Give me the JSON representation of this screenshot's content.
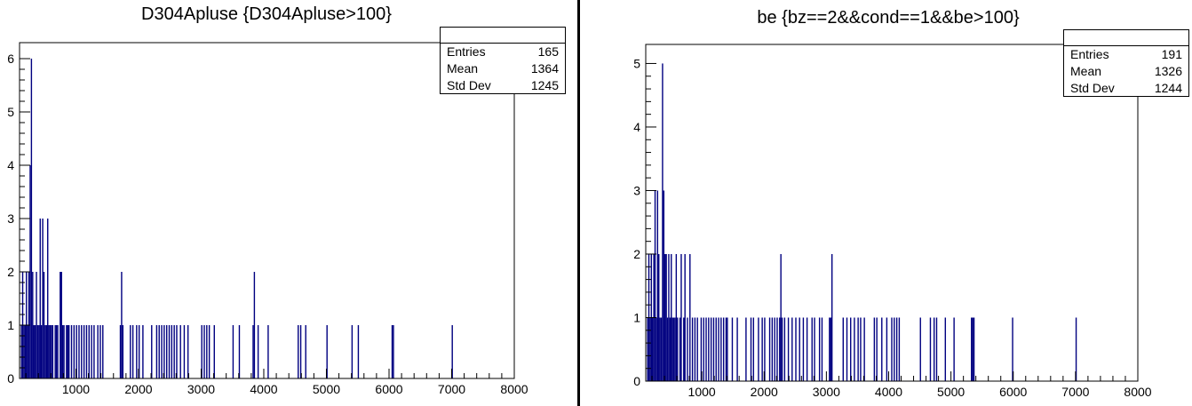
{
  "chart_data": [
    {
      "type": "bar",
      "title": "D304Apluse {D304Apluse>100}",
      "xlabel": "",
      "ylabel": "",
      "xlim": [
        100,
        8000
      ],
      "ylim": [
        0,
        6.3
      ],
      "xticks": [
        "1000",
        "2000",
        "3000",
        "4000",
        "5000",
        "6000",
        "7000",
        "8000"
      ],
      "yticks": [
        "0",
        "1",
        "2",
        "3",
        "4",
        "5",
        "6"
      ],
      "stats": {
        "entries_label": "Entries",
        "entries": "165",
        "mean_label": "Mean",
        "mean": "1364",
        "stddev_label": "Std Dev",
        "stddev": "1245"
      },
      "bar_color": "#000080",
      "bins": [
        [
          120,
          1
        ],
        [
          140,
          2
        ],
        [
          160,
          1
        ],
        [
          180,
          1
        ],
        [
          200,
          2
        ],
        [
          220,
          1
        ],
        [
          240,
          2
        ],
        [
          260,
          4
        ],
        [
          280,
          6
        ],
        [
          300,
          2
        ],
        [
          320,
          1
        ],
        [
          340,
          1
        ],
        [
          360,
          2
        ],
        [
          380,
          1
        ],
        [
          400,
          1
        ],
        [
          420,
          3
        ],
        [
          440,
          1
        ],
        [
          460,
          3
        ],
        [
          480,
          2
        ],
        [
          500,
          1
        ],
        [
          520,
          1
        ],
        [
          540,
          3
        ],
        [
          560,
          1
        ],
        [
          580,
          1
        ],
        [
          600,
          1
        ],
        [
          620,
          1
        ],
        [
          660,
          1
        ],
        [
          680,
          1
        ],
        [
          700,
          1
        ],
        [
          740,
          2
        ],
        [
          760,
          2
        ],
        [
          780,
          1
        ],
        [
          800,
          1
        ],
        [
          840,
          1
        ],
        [
          860,
          1
        ],
        [
          880,
          1
        ],
        [
          920,
          1
        ],
        [
          960,
          1
        ],
        [
          1000,
          1
        ],
        [
          1040,
          1
        ],
        [
          1080,
          1
        ],
        [
          1120,
          1
        ],
        [
          1160,
          1
        ],
        [
          1200,
          1
        ],
        [
          1240,
          1
        ],
        [
          1280,
          1
        ],
        [
          1340,
          1
        ],
        [
          1380,
          1
        ],
        [
          1420,
          1
        ],
        [
          1700,
          1
        ],
        [
          1720,
          2
        ],
        [
          1740,
          1
        ],
        [
          1860,
          1
        ],
        [
          1900,
          1
        ],
        [
          1960,
          1
        ],
        [
          2000,
          1
        ],
        [
          2060,
          1
        ],
        [
          2200,
          1
        ],
        [
          2280,
          1
        ],
        [
          2320,
          1
        ],
        [
          2360,
          1
        ],
        [
          2400,
          1
        ],
        [
          2440,
          1
        ],
        [
          2480,
          1
        ],
        [
          2520,
          1
        ],
        [
          2560,
          1
        ],
        [
          2600,
          1
        ],
        [
          2660,
          1
        ],
        [
          2720,
          1
        ],
        [
          2780,
          1
        ],
        [
          3000,
          1
        ],
        [
          3040,
          1
        ],
        [
          3080,
          1
        ],
        [
          3120,
          1
        ],
        [
          3200,
          1
        ],
        [
          3500,
          1
        ],
        [
          3600,
          1
        ],
        [
          3820,
          1
        ],
        [
          3840,
          2
        ],
        [
          3900,
          1
        ],
        [
          4060,
          1
        ],
        [
          4540,
          1
        ],
        [
          4580,
          1
        ],
        [
          4660,
          1
        ],
        [
          5000,
          1
        ],
        [
          5400,
          1
        ],
        [
          5500,
          1
        ],
        [
          6040,
          1
        ],
        [
          6060,
          1
        ],
        [
          7000,
          1
        ]
      ]
    },
    {
      "type": "bar",
      "title": "be {bz==2&&cond==1&&be>100}",
      "xlabel": "",
      "ylabel": "",
      "xlim": [
        100,
        8000
      ],
      "ylim": [
        0,
        5.3
      ],
      "xticks": [
        "1000",
        "2000",
        "3000",
        "4000",
        "5000",
        "6000",
        "7000",
        "8000"
      ],
      "yticks": [
        "0",
        "1",
        "2",
        "3",
        "4",
        "5"
      ],
      "stats": {
        "entries_label": "Entries",
        "entries": "191",
        "mean_label": "Mean",
        "mean": "1326",
        "stddev_label": "Std Dev",
        "stddev": "1244"
      },
      "bar_color": "#000080",
      "bins": [
        [
          120,
          1
        ],
        [
          140,
          2
        ],
        [
          160,
          1
        ],
        [
          180,
          2
        ],
        [
          200,
          1
        ],
        [
          220,
          2
        ],
        [
          240,
          3
        ],
        [
          260,
          1
        ],
        [
          280,
          3
        ],
        [
          300,
          2
        ],
        [
          320,
          1
        ],
        [
          340,
          1
        ],
        [
          360,
          5
        ],
        [
          380,
          3
        ],
        [
          400,
          2
        ],
        [
          420,
          2
        ],
        [
          440,
          1
        ],
        [
          460,
          2
        ],
        [
          480,
          1
        ],
        [
          500,
          2
        ],
        [
          520,
          1
        ],
        [
          540,
          1
        ],
        [
          560,
          1
        ],
        [
          580,
          2
        ],
        [
          600,
          1
        ],
        [
          640,
          1
        ],
        [
          660,
          2
        ],
        [
          700,
          1
        ],
        [
          720,
          2
        ],
        [
          760,
          1
        ],
        [
          800,
          2
        ],
        [
          840,
          1
        ],
        [
          880,
          1
        ],
        [
          920,
          1
        ],
        [
          980,
          1
        ],
        [
          1020,
          1
        ],
        [
          1060,
          1
        ],
        [
          1100,
          1
        ],
        [
          1140,
          1
        ],
        [
          1180,
          1
        ],
        [
          1220,
          1
        ],
        [
          1260,
          1
        ],
        [
          1300,
          1
        ],
        [
          1340,
          1
        ],
        [
          1380,
          1
        ],
        [
          1400,
          1
        ],
        [
          1480,
          1
        ],
        [
          1560,
          1
        ],
        [
          1700,
          1
        ],
        [
          1780,
          1
        ],
        [
          1820,
          1
        ],
        [
          1900,
          1
        ],
        [
          1960,
          1
        ],
        [
          2000,
          1
        ],
        [
          2080,
          1
        ],
        [
          2120,
          1
        ],
        [
          2160,
          1
        ],
        [
          2200,
          1
        ],
        [
          2240,
          1
        ],
        [
          2260,
          2
        ],
        [
          2280,
          1
        ],
        [
          2320,
          1
        ],
        [
          2380,
          1
        ],
        [
          2440,
          1
        ],
        [
          2500,
          1
        ],
        [
          2560,
          1
        ],
        [
          2620,
          1
        ],
        [
          2680,
          1
        ],
        [
          2760,
          1
        ],
        [
          2800,
          1
        ],
        [
          2880,
          1
        ],
        [
          2920,
          1
        ],
        [
          3040,
          1
        ],
        [
          3060,
          1
        ],
        [
          3080,
          2
        ],
        [
          3260,
          1
        ],
        [
          3320,
          1
        ],
        [
          3380,
          1
        ],
        [
          3440,
          1
        ],
        [
          3500,
          1
        ],
        [
          3540,
          1
        ],
        [
          3600,
          1
        ],
        [
          3760,
          1
        ],
        [
          3800,
          1
        ],
        [
          3880,
          1
        ],
        [
          3960,
          1
        ],
        [
          4040,
          1
        ],
        [
          4080,
          1
        ],
        [
          4120,
          1
        ],
        [
          4160,
          1
        ],
        [
          4500,
          1
        ],
        [
          4660,
          1
        ],
        [
          4720,
          1
        ],
        [
          4760,
          1
        ],
        [
          4900,
          1
        ],
        [
          5040,
          1
        ],
        [
          5320,
          1
        ],
        [
          5340,
          1
        ],
        [
          5360,
          1
        ],
        [
          5980,
          1
        ],
        [
          7000,
          1
        ]
      ]
    }
  ]
}
